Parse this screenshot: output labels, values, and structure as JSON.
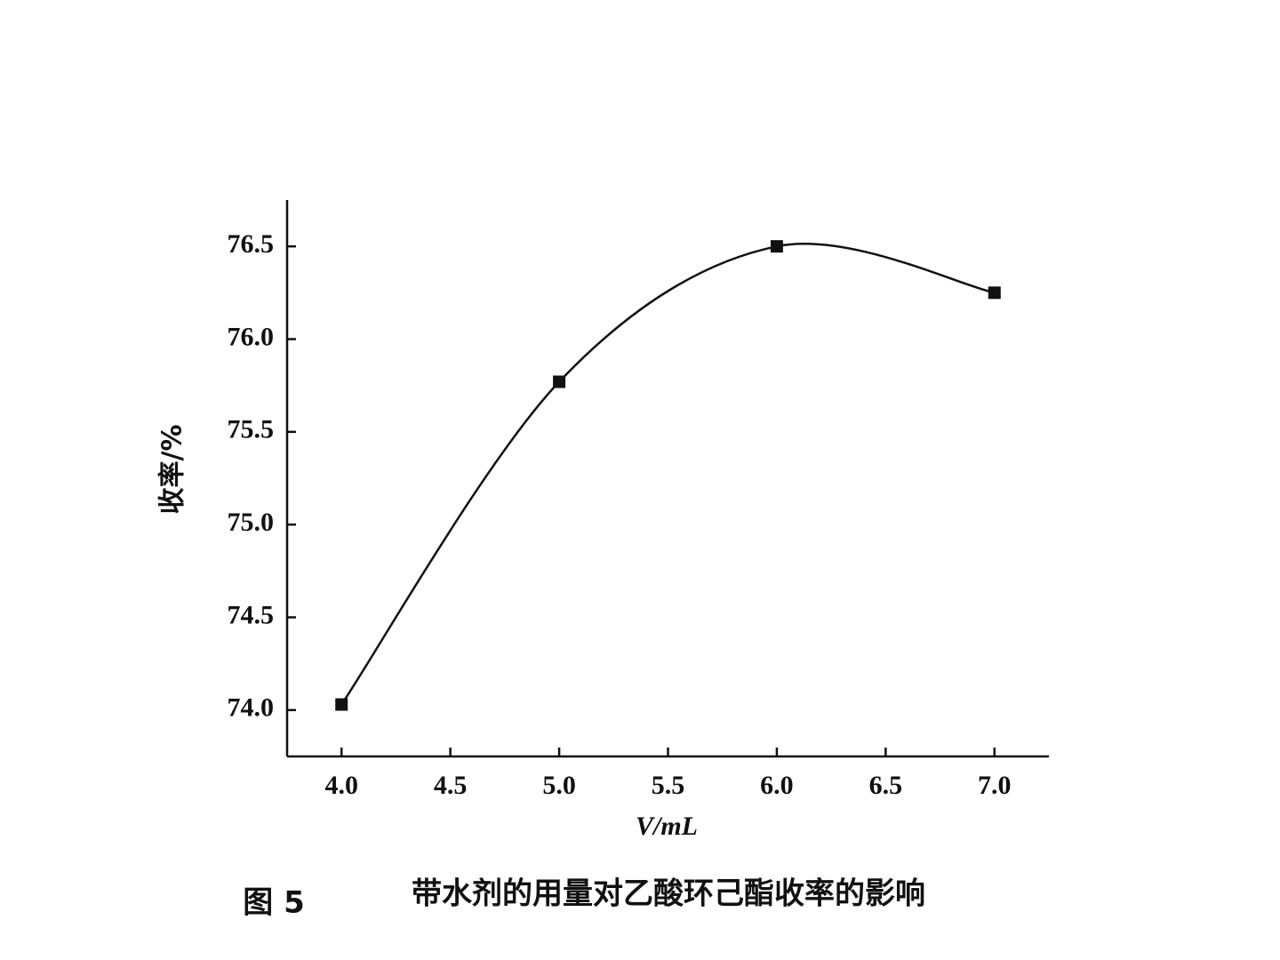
{
  "chart_data": {
    "type": "line",
    "x_label": "V/mL",
    "y_label": "收率/%",
    "figure_label": "图 5",
    "caption": "带水剂的用量对乙酸环己酯收率的影响",
    "x": [
      4.0,
      5.0,
      6.0,
      7.0
    ],
    "series": [
      {
        "name": "收率",
        "color": "#111111",
        "values": [
          74.03,
          75.77,
          76.5,
          76.25
        ]
      }
    ],
    "xlim": [
      3.75,
      7.25
    ],
    "ylim": [
      73.75,
      76.75
    ],
    "xticks": [
      {
        "value": 4,
        "label": "4.0"
      },
      4.5,
      {
        "value": 5,
        "label": "5.0"
      },
      5.5,
      {
        "value": 6,
        "label": "6.0"
      },
      6.5,
      {
        "value": 7,
        "label": "7.0"
      }
    ],
    "yticks": [
      {
        "value": 74,
        "label": "74.0"
      },
      74.5,
      {
        "value": 75,
        "label": "75.0"
      },
      75.5,
      {
        "value": 76,
        "label": "76.0"
      },
      76.5
    ],
    "grid": false
  }
}
